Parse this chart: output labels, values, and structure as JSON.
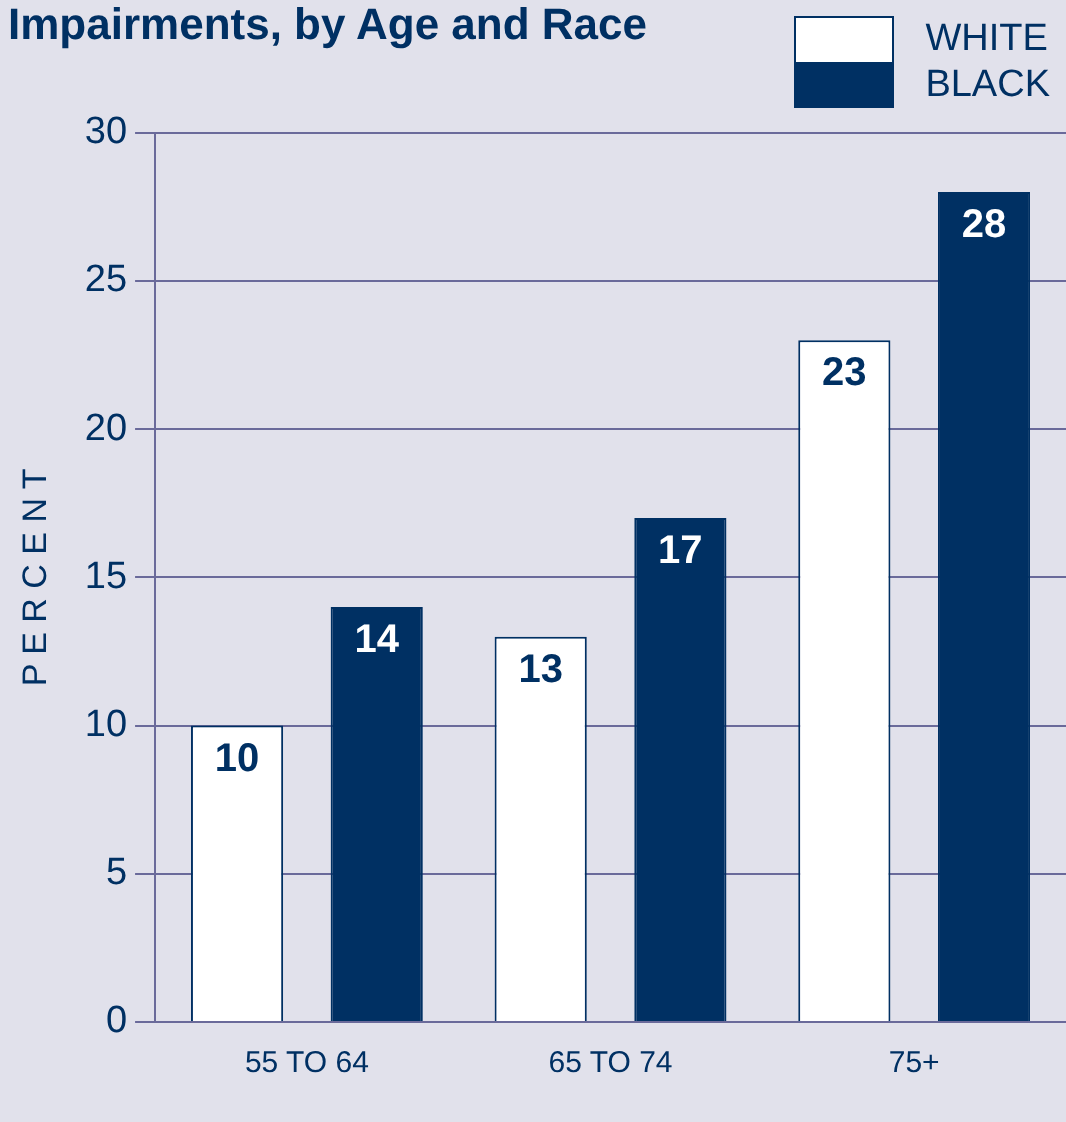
{
  "chart_data": {
    "type": "bar",
    "title": "Impairments, by Age and Race",
    "ylabel": "P E R C E N T",
    "categories": [
      "55 TO 64",
      "65 TO 74",
      "75+"
    ],
    "series": [
      {
        "name": "WHITE",
        "color": "#ffffff",
        "values": [
          10,
          13,
          23
        ]
      },
      {
        "name": "BLACK",
        "color": "#003063",
        "values": [
          14,
          17,
          28
        ]
      }
    ],
    "ylim": [
      0,
      30
    ],
    "yticks": [
      0,
      5,
      10,
      15,
      20,
      25,
      30
    ],
    "grid": "y",
    "legend": "top right",
    "data_labels": true
  }
}
